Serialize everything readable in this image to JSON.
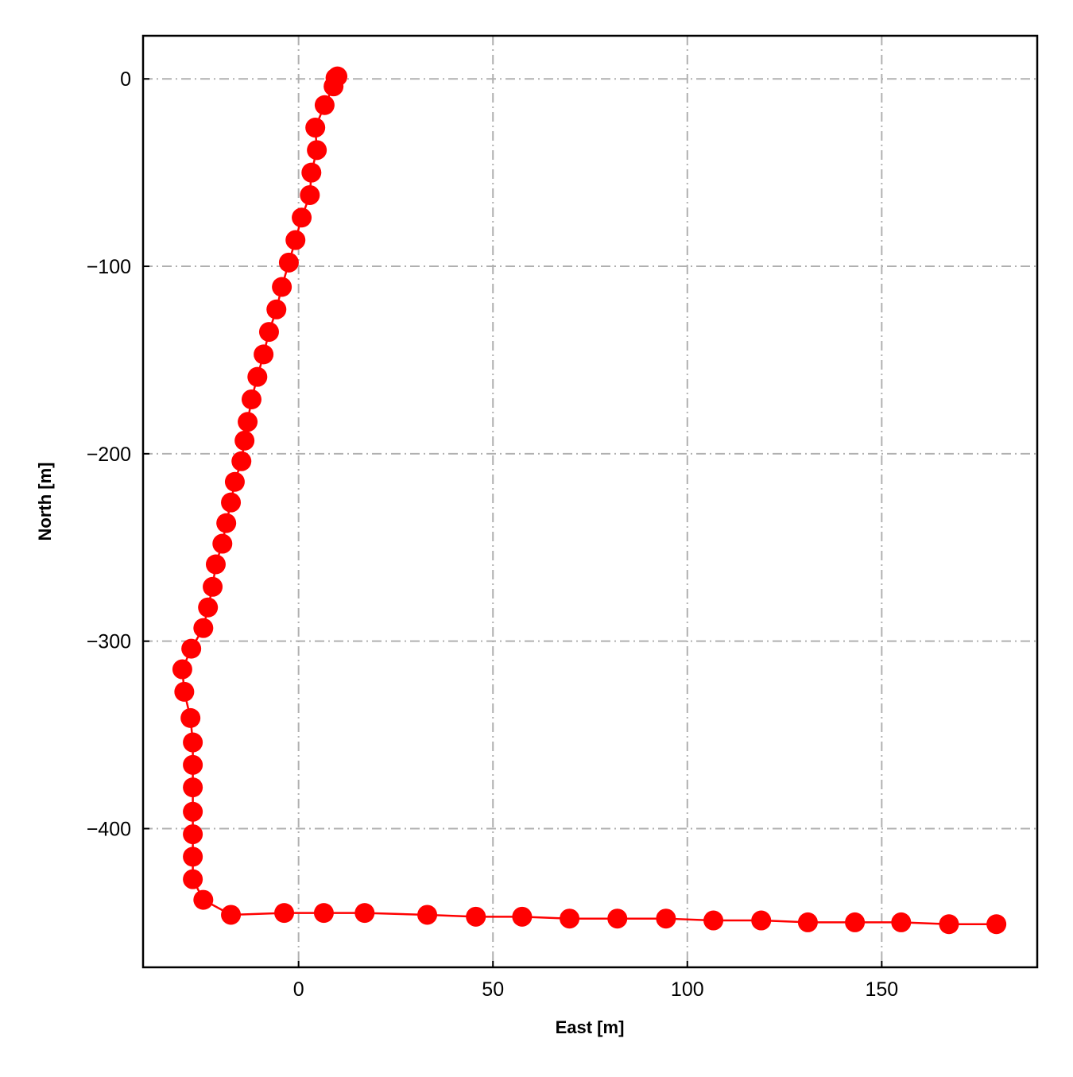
{
  "chart_data": {
    "type": "line",
    "xlabel": "East [m]",
    "ylabel": "North [m]",
    "x": [
      10,
      9.5,
      9,
      6.7,
      4.3,
      4.7,
      3.3,
      2.9,
      0.8,
      -0.8,
      -2.5,
      -4.3,
      -5.7,
      -7.6,
      -9,
      -10.6,
      -12.1,
      -13.1,
      -13.9,
      -14.7,
      -16.4,
      -17.4,
      -18.6,
      -19.6,
      -21.3,
      -22.1,
      -23.3,
      -24.5,
      -27.6,
      -29.9,
      -29.4,
      -27.8,
      -27.2,
      -27.2,
      -27.2,
      -27.2,
      -27.2,
      -27.2,
      -27.2,
      -24.5,
      -17.4,
      -3.7,
      6.5,
      17,
      33.1,
      45.6,
      57.5,
      69.7,
      82,
      94.5,
      106.7,
      119,
      131,
      143.1,
      155,
      167.3,
      179.5
    ],
    "values": [
      1.3,
      0.5,
      -4,
      -14,
      -26,
      -38,
      -50,
      -62,
      -74,
      -86,
      -98,
      -111,
      -123,
      -135,
      -147,
      -159,
      -171,
      -183,
      -193,
      -204,
      -215,
      -226,
      -237,
      -248,
      -259,
      -271,
      -282,
      -293,
      -304,
      -315,
      -327,
      -341,
      -354,
      -366,
      -378,
      -391,
      -403,
      -415,
      -427,
      -438,
      -446,
      -445,
      -445,
      -445,
      -446,
      -447,
      -447,
      -448,
      -448,
      -448,
      -449,
      -449,
      -450,
      -450,
      -450,
      -451,
      -451
    ],
    "color": "#ff0000",
    "xlim": [
      -40,
      190
    ],
    "ylim": [
      -474,
      23
    ],
    "xticks": [
      0,
      50,
      100,
      150
    ],
    "yticks": [
      0,
      {
        "value": -100,
        "label": "−100"
      },
      {
        "value": -200,
        "label": "−200"
      },
      {
        "value": -300,
        "label": "−300"
      },
      {
        "value": -400,
        "label": "−400"
      }
    ],
    "grid": true
  }
}
